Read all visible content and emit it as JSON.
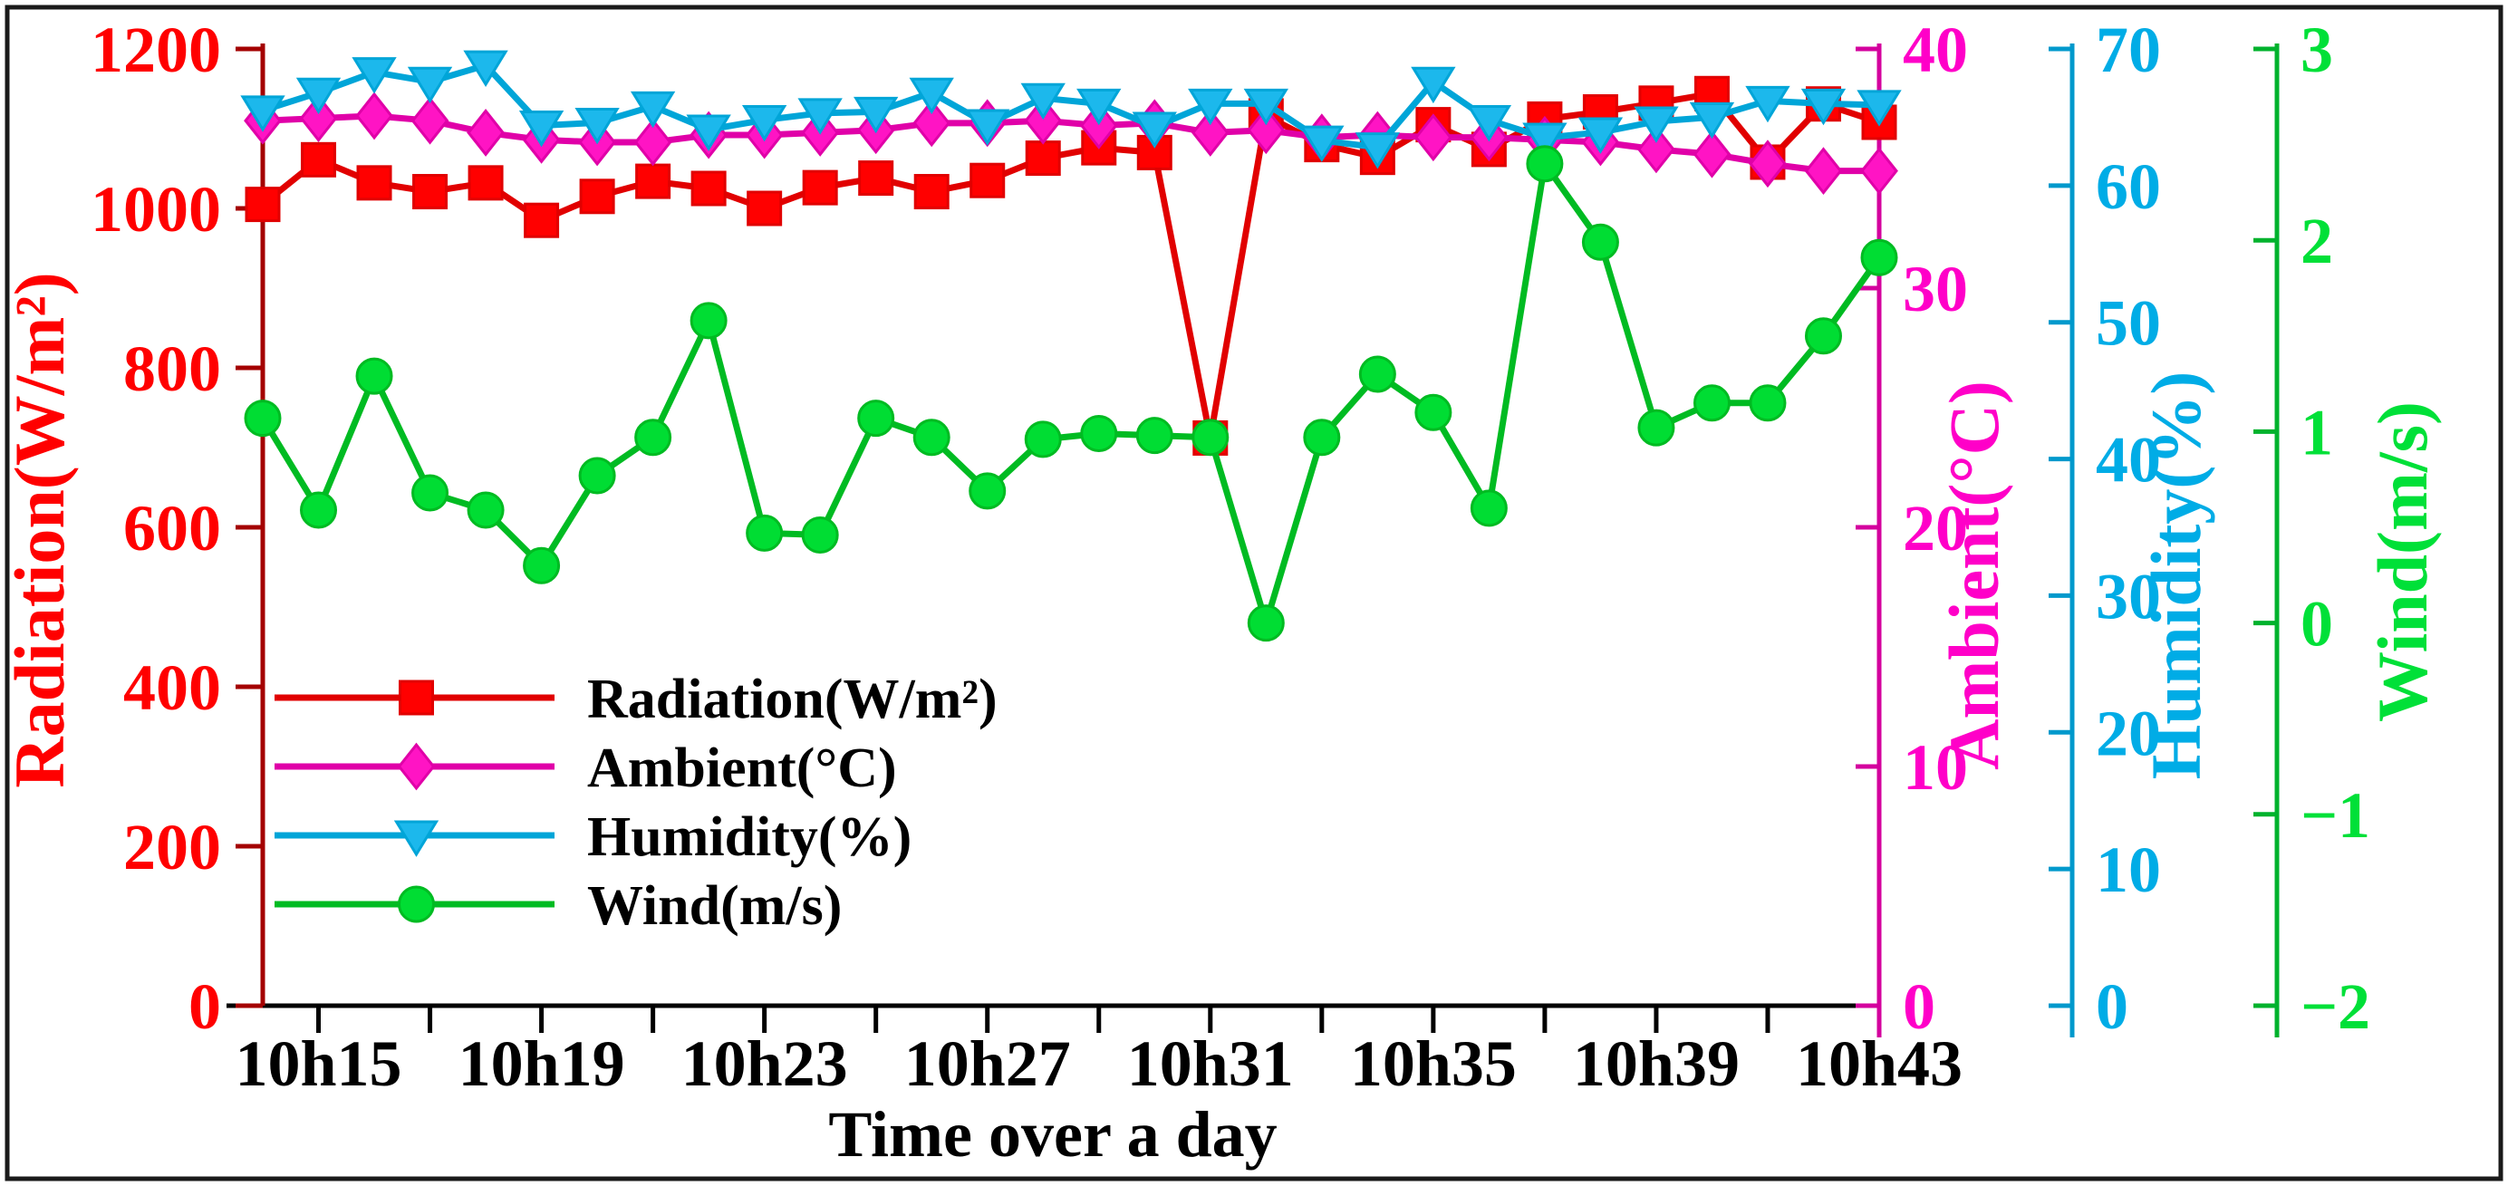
{
  "figure": {
    "background": "#ffffff",
    "border_color": "#1a1a1a"
  },
  "chart_data": {
    "type": "line",
    "title": "",
    "xlabel": "Time over a day",
    "x": [
      "10h14",
      "10h15",
      "10h16",
      "10h17",
      "10h18",
      "10h19",
      "10h20",
      "10h21",
      "10h22",
      "10h23",
      "10h24",
      "10h25",
      "10h26",
      "10h27",
      "10h28",
      "10h29",
      "10h30",
      "10h31",
      "10h32",
      "10h33",
      "10h34",
      "10h35",
      "10h36",
      "10h37",
      "10h38",
      "10h39",
      "10h40",
      "10h41",
      "10h42",
      "10h43"
    ],
    "x_major_labels": [
      "10h15",
      "10h19",
      "10h23",
      "10h27",
      "10h31",
      "10h35",
      "10h39",
      "10h43"
    ],
    "x_minor_tick_every_minutes": 2,
    "grid": false,
    "axes": [
      {
        "id": "radiation",
        "title": "Radiation(W/m²)",
        "side": "left",
        "min": 0,
        "max": 1200,
        "step": 200,
        "label_color": "#ff0000",
        "line_color": "#a40000"
      },
      {
        "id": "ambient",
        "title": "Ambient(°C)",
        "side": "right",
        "min": 0,
        "max": 40,
        "step": 10,
        "label_color": "#ff00c8",
        "line_color": "#d4009e"
      },
      {
        "id": "humidity",
        "title": "Humidity(%)",
        "side": "right",
        "min": 0,
        "max": 70,
        "step": 10,
        "label_color": "#00ace6",
        "line_color": "#0099cc"
      },
      {
        "id": "wind",
        "title": "Wind(m/s)",
        "side": "right",
        "min": -2,
        "max": 3,
        "step": 1,
        "label_color": "#00e038",
        "line_color": "#00b22d"
      }
    ],
    "series": [
      {
        "name": "Radiation(W/m²)",
        "axis": "radiation",
        "marker": "square",
        "line_color": "#e10000",
        "marker_color": "#ff0000",
        "values": [
          1005,
          1061,
          1032,
          1021,
          1032,
          985,
          1015,
          1034,
          1025,
          1000,
          1026,
          1038,
          1021,
          1035,
          1063,
          1076,
          1070,
          712,
          1116,
          1080,
          1064,
          1105,
          1074,
          1112,
          1121,
          1132,
          1144,
          1058,
          1131,
          1108
        ]
      },
      {
        "name": "Ambient(°C)",
        "axis": "ambient",
        "marker": "diamond",
        "line_color": "#e000a8",
        "marker_color": "#ff14c4",
        "values": [
          37.0,
          37.1,
          37.2,
          37.0,
          36.5,
          36.2,
          36.1,
          36.1,
          36.4,
          36.4,
          36.5,
          36.6,
          36.9,
          36.9,
          37.0,
          36.8,
          36.9,
          36.5,
          36.6,
          36.3,
          36.4,
          36.3,
          36.3,
          36.2,
          36.1,
          35.8,
          35.6,
          35.2,
          34.9,
          34.9
        ]
      },
      {
        "name": "Humidity(%)",
        "axis": "humidity",
        "marker": "triangle-down",
        "line_color": "#00a5d8",
        "marker_color": "#1cb8ec",
        "values": [
          65.5,
          66.8,
          68.3,
          67.6,
          68.8,
          64.4,
          64.6,
          65.8,
          64.1,
          64.8,
          65.3,
          65.4,
          66.8,
          64.5,
          66.4,
          66.0,
          64.3,
          66.0,
          66.0,
          63.3,
          62.8,
          67.6,
          64.8,
          63.5,
          63.9,
          64.7,
          65.0,
          66.2,
          66.0,
          65.9
        ]
      },
      {
        "name": "Wind(m/s)",
        "axis": "wind",
        "marker": "circle",
        "line_color": "#00bb22",
        "marker_color": "#00dd33",
        "values": [
          1.07,
          0.59,
          1.29,
          0.68,
          0.59,
          0.3,
          0.77,
          0.97,
          1.58,
          0.47,
          0.46,
          1.07,
          0.97,
          0.69,
          0.96,
          0.99,
          0.98,
          0.97,
          0.0,
          0.97,
          1.3,
          1.1,
          0.6,
          2.4,
          1.99,
          1.02,
          1.15,
          1.15,
          1.5,
          1.91
        ]
      }
    ],
    "legend": {
      "position": "inside-bottom-left",
      "entries": [
        "Radiation(W/m²)",
        "Ambient(°C)",
        "Humidity(%)",
        "Wind(m/s)"
      ],
      "text_color": "#000000"
    }
  }
}
